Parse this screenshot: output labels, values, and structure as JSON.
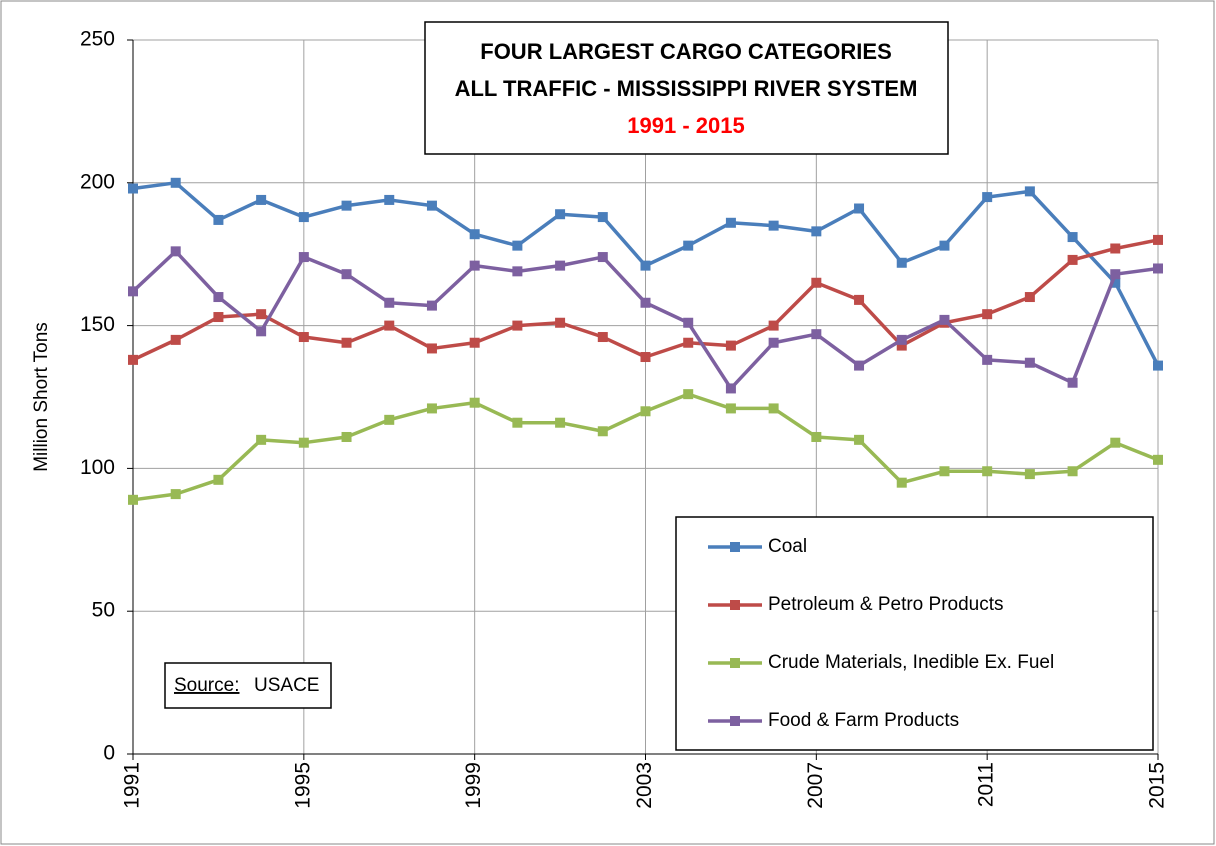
{
  "chart_data": {
    "type": "line",
    "title": "FOUR LARGEST CARGO CATEGORIES",
    "subtitle": "ALL TRAFFIC - MISSISSIPPI RIVER SYSTEM",
    "period": "1991 - 2015",
    "y_label": "Million Short Tons",
    "source": {
      "label": "Source:",
      "text": "USACE"
    },
    "x": [
      1991,
      1992,
      1993,
      1994,
      1995,
      1996,
      1997,
      1998,
      1999,
      2000,
      2001,
      2002,
      2003,
      2004,
      2005,
      2006,
      2007,
      2008,
      2009,
      2010,
      2011,
      2012,
      2013,
      2014,
      2015
    ],
    "xlim": [
      1991,
      2015
    ],
    "xticks": [
      1991,
      1995,
      1999,
      2003,
      2007,
      2011,
      2015
    ],
    "ylim": [
      0,
      250
    ],
    "yticks": [
      0,
      50,
      100,
      150,
      200,
      250
    ],
    "grid": true,
    "legend": "lower right",
    "series": [
      {
        "name": "Coal",
        "color": "#4a7ebb",
        "values": [
          198,
          200,
          187,
          194,
          188,
          192,
          194,
          192,
          182,
          178,
          189,
          188,
          171,
          178,
          186,
          185,
          183,
          191,
          172,
          178,
          195,
          197,
          181,
          165,
          136
        ]
      },
      {
        "name": "Petroleum & Petro Products",
        "color": "#be4b48",
        "values": [
          138,
          145,
          153,
          154,
          146,
          144,
          150,
          142,
          144,
          150,
          151,
          146,
          139,
          144,
          143,
          150,
          165,
          159,
          143,
          151,
          154,
          160,
          173,
          177,
          180
        ]
      },
      {
        "name": "Crude Materials, Inedible Ex. Fuel",
        "color": "#98b954",
        "values": [
          89,
          91,
          96,
          110,
          109,
          111,
          117,
          121,
          123,
          116,
          116,
          113,
          120,
          126,
          121,
          121,
          111,
          110,
          95,
          99,
          99,
          98,
          99,
          109,
          103
        ]
      },
      {
        "name": "Food & Farm Products",
        "color": "#7d60a0",
        "values": [
          162,
          176,
          160,
          148,
          174,
          168,
          158,
          157,
          171,
          169,
          171,
          174,
          158,
          151,
          128,
          144,
          147,
          136,
          145,
          152,
          138,
          137,
          130,
          168,
          170
        ]
      }
    ]
  }
}
